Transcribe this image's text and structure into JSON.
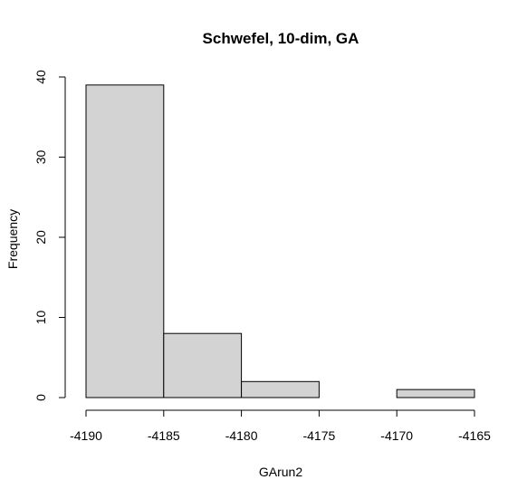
{
  "chart_data": {
    "type": "bar",
    "title": "Schwefel, 10-dim, GA",
    "xlabel": "GArun2",
    "ylabel": "Frequency",
    "bins": [
      {
        "from": -4190,
        "to": -4185,
        "count": 39
      },
      {
        "from": -4185,
        "to": -4180,
        "count": 8
      },
      {
        "from": -4180,
        "to": -4175,
        "count": 2
      },
      {
        "from": -4175,
        "to": -4170,
        "count": 0
      },
      {
        "from": -4170,
        "to": -4165,
        "count": 1
      }
    ],
    "xlim": [
      -4190,
      -4165
    ],
    "ylim": [
      0,
      40
    ],
    "xticks": [
      -4190,
      -4185,
      -4180,
      -4175,
      -4170,
      -4165
    ],
    "yticks": [
      0,
      10,
      20,
      30,
      40
    ],
    "bar_color": "#d3d3d3",
    "grid": false,
    "legend": "none"
  }
}
